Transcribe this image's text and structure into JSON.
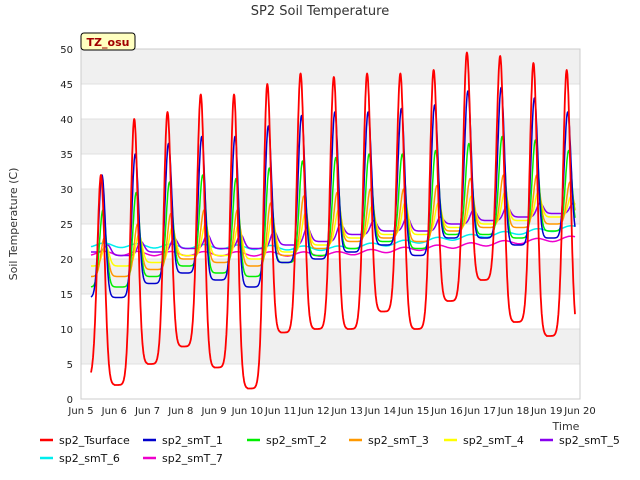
{
  "chart_data": {
    "type": "line",
    "title": "SP2 Soil Temperature",
    "xlabel": "Time",
    "ylabel": "Soil Temperature (C)",
    "badge": "TZ_osu",
    "ylim": [
      0,
      50
    ],
    "yticks": [
      0,
      5,
      10,
      15,
      20,
      25,
      30,
      35,
      40,
      45,
      50
    ],
    "xlim": [
      5,
      20
    ],
    "xticks": [
      5,
      6,
      7,
      8,
      9,
      10,
      11,
      12,
      13,
      14,
      15,
      16,
      17,
      18,
      19,
      20
    ],
    "xtick_labels": [
      "Jun 5",
      "Jun 6",
      "Jun 7",
      "Jun 8",
      "Jun 9",
      "Jun 10",
      "Jun 11",
      "Jun 12",
      "Jun 13",
      "Jun 14",
      "Jun 15",
      "Jun 16",
      "Jun 17",
      "Jun 18",
      "Jun 19",
      "Jun 20"
    ],
    "x_start": 5.3,
    "x_end": 19.85,
    "grid": "horizontal bands",
    "legend_position": "bottom",
    "series": [
      {
        "name": "sp2_Tsurface",
        "color": "#ff0000",
        "daily_max": [
          32,
          40,
          41,
          43.5,
          43.5,
          45,
          46.5,
          46,
          46.5,
          46.5,
          47,
          49.5,
          49,
          48,
          47
        ],
        "daily_min": [
          3,
          2,
          5,
          7.5,
          4.5,
          1.5,
          9.5,
          10,
          10,
          12.5,
          10,
          14,
          17,
          11,
          9
        ]
      },
      {
        "name": "sp2_smT_1",
        "color": "#0000cc",
        "daily_max": [
          32,
          35,
          36.5,
          37.5,
          37.5,
          39,
          40.5,
          41,
          41,
          41.5,
          42,
          44,
          44.5,
          43,
          41
        ],
        "daily_min": [
          14.5,
          14.5,
          16.5,
          18,
          17,
          16,
          19.5,
          20,
          21,
          22,
          20.5,
          23,
          23,
          22,
          23
        ]
      },
      {
        "name": "sp2_smT_2",
        "color": "#00ee00",
        "daily_max": [
          27,
          29.5,
          31,
          32,
          31.5,
          33,
          34,
          34.5,
          35,
          35,
          35.5,
          36.5,
          37.5,
          37,
          35.5
        ],
        "daily_min": [
          16,
          16,
          17.5,
          19,
          18,
          17.5,
          19.5,
          20.5,
          21.5,
          22.5,
          21.5,
          23.5,
          23.5,
          23,
          24
        ]
      },
      {
        "name": "sp2_smT_3",
        "color": "#ff9900",
        "daily_max": [
          23,
          25,
          26.5,
          27,
          27,
          28,
          29,
          29.5,
          30,
          30,
          30.5,
          31.5,
          32,
          32,
          31
        ],
        "daily_min": [
          17.5,
          17.5,
          18.5,
          20,
          19.5,
          19,
          20.5,
          21.5,
          22.5,
          23,
          22.5,
          24,
          24.5,
          24.5,
          25
        ]
      },
      {
        "name": "sp2_smT_4",
        "color": "#ffff00",
        "daily_max": [
          22,
          23.5,
          24.5,
          25,
          25,
          26,
          26.5,
          27,
          27.5,
          28,
          28,
          29,
          29.5,
          29.5,
          29
        ],
        "daily_min": [
          19,
          19,
          19.5,
          20.5,
          20.5,
          20,
          21,
          22,
          23,
          23.5,
          23.5,
          24.5,
          25,
          25.5,
          26
        ]
      },
      {
        "name": "sp2_smT_5",
        "color": "#8800ee",
        "daily_max": [
          22,
          22.5,
          23,
          23.5,
          23.5,
          24,
          24.5,
          25,
          25.5,
          26,
          26,
          27,
          27.5,
          28,
          28
        ],
        "daily_min": [
          21,
          20.5,
          21,
          21.5,
          21.5,
          21.5,
          22,
          22.5,
          23.5,
          24,
          24,
          25,
          25.5,
          26,
          26.5
        ]
      },
      {
        "name": "sp2_smT_6",
        "color": "#00eeee",
        "start": 22,
        "mid": 21.5,
        "end": 24.5
      },
      {
        "name": "sp2_smT_7",
        "color": "#ee00cc",
        "start": 20.8,
        "mid": 20.7,
        "end": 23
      }
    ]
  }
}
